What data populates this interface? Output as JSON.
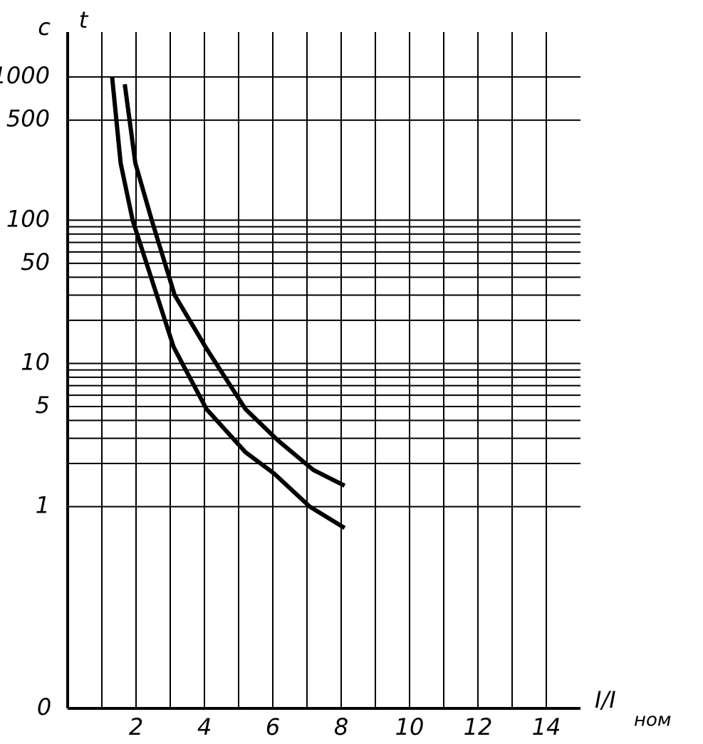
{
  "chart_data": {
    "type": "line",
    "ylabel": "t",
    "yunit": "c",
    "xlabel": "I/I",
    "xlabel_subscript": "ном",
    "origin_label": "0",
    "log_y": true,
    "grid": true,
    "xlim": [
      0,
      15
    ],
    "xticks": [
      2,
      4,
      6,
      8,
      10,
      12,
      14
    ],
    "xgrid_minor": [
      1,
      3,
      5,
      7,
      9,
      11,
      13
    ],
    "ylim": [
      0.039,
      2060
    ],
    "yticks": [
      1,
      5,
      10,
      50,
      100,
      500,
      1000
    ],
    "ygrid_minor": [
      2,
      3,
      4,
      6,
      7,
      8,
      9,
      20,
      30,
      40,
      60,
      70,
      80,
      90
    ],
    "series": [
      {
        "color": "#000000",
        "x": [
          1.3,
          1.55,
          1.9,
          2.5,
          3.1,
          4.06,
          5.2,
          6.04,
          7.08,
          8.1
        ],
        "values": [
          1000,
          250,
          100,
          36,
          13,
          4.8,
          2.4,
          1.7,
          1,
          0.71
        ]
      },
      {
        "color": "#000000",
        "x": [
          1.67,
          1.98,
          2.46,
          3.13,
          4.06,
          5.2,
          6.15,
          7.19,
          8.1
        ],
        "values": [
          890,
          250,
          100,
          30,
          12.7,
          4.8,
          2.9,
          1.8,
          1.4
        ]
      }
    ]
  }
}
